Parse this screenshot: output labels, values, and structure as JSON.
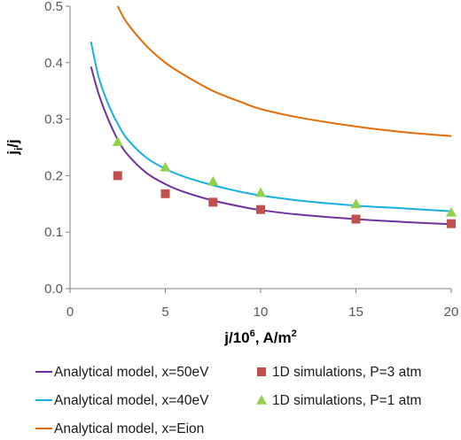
{
  "chart_data": {
    "type": "line",
    "xlabel": {
      "main": "j/10",
      "sup": "6",
      "rest": ", A/m",
      "sup2": "2"
    },
    "ylabel": {
      "main": "j",
      "sub": "i",
      "rest": "/j"
    },
    "xlim": [
      0,
      20
    ],
    "ylim": [
      0,
      0.5
    ],
    "x_ticks": [
      0,
      5,
      10,
      15,
      20
    ],
    "y_ticks": [
      "0.0",
      "0.1",
      "0.2",
      "0.3",
      "0.4",
      "0.5"
    ],
    "grid": false,
    "legend_position": "bottom",
    "series": [
      {
        "name": "Analytical model, x=50eV",
        "kind": "line",
        "color": "#7030a0",
        "x": [
          1.1,
          1.5,
          2,
          2.5,
          3,
          4,
          5,
          6,
          7.5,
          9,
          10,
          12,
          15,
          17.5,
          20
        ],
        "y": [
          0.393,
          0.345,
          0.3,
          0.264,
          0.238,
          0.205,
          0.185,
          0.171,
          0.156,
          0.145,
          0.139,
          0.131,
          0.123,
          0.118,
          0.114
        ]
      },
      {
        "name": "Analytical model, x=40eV",
        "kind": "line",
        "color": "#17b0e6",
        "x": [
          1.1,
          1.5,
          2,
          2.5,
          3,
          4,
          5,
          6,
          7.5,
          9,
          10,
          12,
          15,
          17.5,
          20
        ],
        "y": [
          0.437,
          0.375,
          0.327,
          0.292,
          0.265,
          0.232,
          0.212,
          0.198,
          0.183,
          0.171,
          0.165,
          0.156,
          0.147,
          0.142,
          0.137
        ]
      },
      {
        "name": "Analytical model, x=Eion",
        "kind": "line",
        "color": "#e46c0a",
        "x": [
          2.5,
          3,
          4,
          5,
          6,
          7.5,
          9,
          10,
          12,
          15,
          17.5,
          20
        ],
        "y": [
          0.5,
          0.47,
          0.43,
          0.4,
          0.378,
          0.35,
          0.33,
          0.318,
          0.303,
          0.287,
          0.277,
          0.27
        ]
      },
      {
        "name": "1D simulations, P=3 atm",
        "kind": "square",
        "color": "#c0504d",
        "x": [
          2.5,
          5,
          7.5,
          10,
          15,
          20
        ],
        "y": [
          0.2,
          0.168,
          0.153,
          0.14,
          0.123,
          0.115
        ]
      },
      {
        "name": "1D simulations, P=1 atm",
        "kind": "triangle",
        "color": "#92d050",
        "x": [
          2.5,
          5,
          7.5,
          10,
          15,
          20
        ],
        "y": [
          0.26,
          0.215,
          0.19,
          0.17,
          0.15,
          0.135
        ]
      }
    ]
  }
}
